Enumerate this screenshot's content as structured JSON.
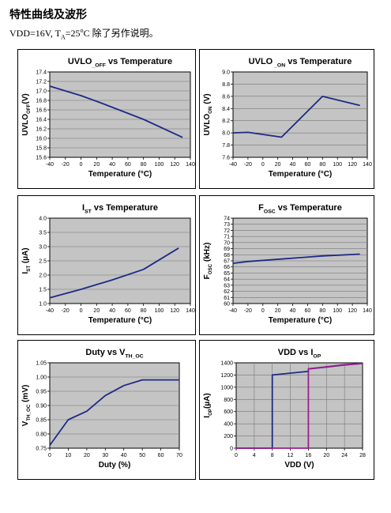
{
  "page": {
    "heading": "特性曲线及波形",
    "condition": {
      "pre": "VDD=16V, T",
      "sub": "A",
      "mid": "=25",
      "sup": "o",
      "post": "C  除了另作说明。"
    }
  },
  "colors": {
    "line": "#1f2a86",
    "line2": "#9b1e8c",
    "plot_bg": "#c4c4c4",
    "grid": "#777777"
  },
  "chart_data": [
    {
      "id": "uvlo-off",
      "type": "line",
      "title": {
        "main": "UVLO",
        "sub": "_OFF",
        "tail": " vs Temperature"
      },
      "xlabel": "Temperature (°C)",
      "ylabel": {
        "main": "UVLO",
        "sub": "OFF",
        "tail": "(V)"
      },
      "xlim": [
        -40,
        140
      ],
      "ylim": [
        15.6,
        17.4
      ],
      "xticks": [
        "-40",
        "-20",
        "0",
        "20",
        "40",
        "60",
        "80",
        "100",
        "120",
        "140"
      ],
      "yticks": [
        "15.6",
        "15.8",
        "16.0",
        "16.2",
        "16.4",
        "16.6",
        "16.8",
        "17.0",
        "17.2",
        "17.4"
      ],
      "grid": "horizontal",
      "series": [
        {
          "x": [
            -40,
            0,
            25,
            80,
            130
          ],
          "y": [
            17.1,
            16.9,
            16.75,
            16.4,
            16.02
          ]
        }
      ]
    },
    {
      "id": "uvlo-on",
      "type": "line",
      "title": {
        "main": "UVLO",
        "sub": " _ON",
        "tail": " vs Temperature"
      },
      "xlabel": "Temperature (°C)",
      "ylabel": {
        "main": "UVLO",
        "sub": "ON",
        "tail": " (V)"
      },
      "xlim": [
        -40,
        140
      ],
      "ylim": [
        7.6,
        9.0
      ],
      "xticks": [
        "-40",
        "-20",
        "0",
        "20",
        "40",
        "60",
        "80",
        "100",
        "120",
        "140"
      ],
      "yticks": [
        "7.6",
        "7.8",
        "8.0",
        "8.2",
        "8.4",
        "8.6",
        "8.8",
        "9.0"
      ],
      "grid": "horizontal",
      "series": [
        {
          "x": [
            -40,
            -20,
            25,
            80,
            130
          ],
          "y": [
            8.0,
            8.01,
            7.93,
            8.6,
            8.45
          ]
        }
      ]
    },
    {
      "id": "ist",
      "type": "line",
      "title": {
        "main": "I",
        "sub": "ST",
        "tail": " vs  Temperature"
      },
      "xlabel": "Temperature (°C)",
      "ylabel": {
        "main": "I",
        "sub": "ST",
        "tail": " (µA)"
      },
      "xlim": [
        -40,
        140
      ],
      "ylim": [
        1.0,
        4.0
      ],
      "xticks": [
        "-40",
        "-20",
        "0",
        "20",
        "40",
        "60",
        "80",
        "100",
        "120",
        "140"
      ],
      "yticks": [
        "1.0",
        "1.5",
        "2.0",
        "2.5",
        "3.0",
        "3.5",
        "4.0"
      ],
      "grid": "horizontal",
      "series": [
        {
          "x": [
            -40,
            0,
            40,
            80,
            125
          ],
          "y": [
            1.2,
            1.5,
            1.83,
            2.2,
            2.95
          ]
        }
      ]
    },
    {
      "id": "fosc",
      "type": "line",
      "title": {
        "main": "F",
        "sub": "OSC",
        "tail": "  vs  Temperature"
      },
      "xlabel": "Temperature (°C)",
      "ylabel": {
        "main": "F",
        "sub": "OSC",
        "tail": " (kHz)"
      },
      "xlim": [
        -40,
        140
      ],
      "ylim": [
        60,
        74
      ],
      "xticks": [
        "-40",
        "-20",
        "0",
        "20",
        "40",
        "60",
        "80",
        "100",
        "120",
        "140"
      ],
      "yticks": [
        "60",
        "61",
        "62",
        "63",
        "64",
        "65",
        "66",
        "67",
        "68",
        "69",
        "70",
        "71",
        "72",
        "73",
        "74"
      ],
      "grid": "horizontal",
      "series": [
        {
          "x": [
            -40,
            -20,
            25,
            80,
            130
          ],
          "y": [
            66.6,
            66.9,
            67.3,
            67.8,
            68.1
          ]
        }
      ]
    },
    {
      "id": "duty",
      "type": "line",
      "title": {
        "main": "Duty  vs V",
        "sub": "TH_OC",
        "tail": ""
      },
      "xlabel": "Duty    (%)",
      "ylabel": {
        "main": "V",
        "sub": "TH_OC",
        "tail": " (mV)"
      },
      "xlim": [
        0,
        70
      ],
      "ylim": [
        0.75,
        1.05
      ],
      "xticks": [
        "0",
        "10",
        "20",
        "30",
        "40",
        "50",
        "60",
        "70"
      ],
      "yticks": [
        "0.75",
        "0.80",
        "0.85",
        "0.90",
        "0.95",
        "1.00",
        "1.05"
      ],
      "grid": "horizontal",
      "series": [
        {
          "x": [
            0,
            10,
            20,
            30,
            40,
            50,
            60,
            70
          ],
          "y": [
            0.76,
            0.85,
            0.88,
            0.935,
            0.97,
            0.99,
            0.99,
            0.99
          ]
        }
      ]
    },
    {
      "id": "vdd-iop",
      "type": "line",
      "title": {
        "main": "VDD vs I",
        "sub": "OP",
        "tail": ""
      },
      "xlabel": "VDD (V)",
      "ylabel": {
        "main": "I",
        "sub": "OP",
        "tail": "(µA)"
      },
      "xlim": [
        0,
        28
      ],
      "ylim": [
        0,
        1400
      ],
      "xticks": [
        "0",
        "4",
        "8",
        "12",
        "16",
        "20",
        "24",
        "28"
      ],
      "yticks": [
        "0",
        "200",
        "400",
        "600",
        "800",
        "1000",
        "1200",
        "1400"
      ],
      "grid": "both",
      "series": [
        {
          "x": [
            0,
            8,
            8,
            16,
            16,
            20,
            24,
            28
          ],
          "y": [
            0,
            0,
            1200,
            1260,
            1300,
            1330,
            1365,
            1390
          ]
        },
        {
          "x": [
            0,
            16,
            16,
            20,
            24,
            28
          ],
          "y": [
            0,
            0,
            1300,
            1335,
            1370,
            1390
          ]
        }
      ]
    }
  ]
}
